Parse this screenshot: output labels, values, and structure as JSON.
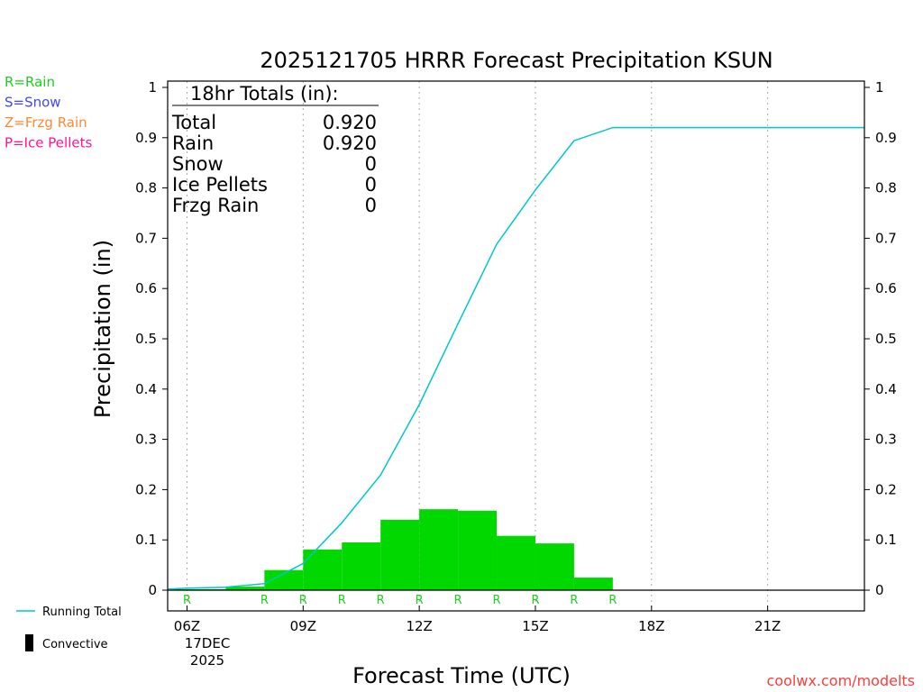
{
  "title": "2025121705 HRRR Forecast Precipitation KSUN",
  "xlabel": "Forecast Time (UTC)",
  "ylabel": "Precipitation (in)",
  "credit": "coolwx.com/modelts",
  "colors": {
    "rain": "#00d800",
    "running_total": "#00c8c8",
    "rain_text": "#22cc22",
    "snow_text": "#4444ff",
    "frzg_text": "#ff8833",
    "ice_text": "#ff1493",
    "credit": "#ff3b3b"
  },
  "ptype_legend": [
    {
      "label": "R=Rain",
      "color": "#22cc22"
    },
    {
      "label": "S=Snow",
      "color": "#4444ff"
    },
    {
      "label": "Z=Frzg Rain",
      "color": "#ff8833"
    },
    {
      "label": "P=Ice Pellets",
      "color": "#ff1493"
    }
  ],
  "series_legend": {
    "running_total": "Running Total",
    "convective": "Convective"
  },
  "totals": {
    "header": "18hr Totals (in):",
    "rows": [
      {
        "label": "Total",
        "value": "0.920"
      },
      {
        "label": "Rain",
        "value": "0.920"
      },
      {
        "label": "Snow",
        "value": "0"
      },
      {
        "label": "Ice Pellets",
        "value": "0"
      },
      {
        "label": "Frzg Rain",
        "value": "0"
      }
    ]
  },
  "x_ticks": [
    {
      "hour": 6,
      "label": "06Z"
    },
    {
      "hour": 9,
      "label": "09Z"
    },
    {
      "hour": 12,
      "label": "12Z"
    },
    {
      "hour": 15,
      "label": "15Z"
    },
    {
      "hour": 18,
      "label": "18Z"
    },
    {
      "hour": 21,
      "label": "21Z"
    }
  ],
  "date_label": [
    "17DEC",
    "2025"
  ],
  "chart_data": {
    "type": "bar",
    "title": "2025121705 HRRR Forecast Precipitation KSUN",
    "xlabel": "Forecast Time (UTC)",
    "ylabel": "Precipitation (in)",
    "xlim": [
      5.5,
      23.5
    ],
    "ylim": [
      0,
      1
    ],
    "y_ticks": [
      0,
      0.1,
      0.2,
      0.3,
      0.4,
      0.5,
      0.6,
      0.7,
      0.8,
      0.9,
      1
    ],
    "grid": "vertical dotted at 3-hourly ticks",
    "bars": {
      "name": "Rain",
      "hours": [
        6,
        7,
        8,
        9,
        10,
        11,
        12,
        13,
        14,
        15,
        16,
        17
      ],
      "values": [
        0.002,
        0.002,
        0.007,
        0.04,
        0.081,
        0.095,
        0.14,
        0.161,
        0.158,
        0.108,
        0.093,
        0.025
      ]
    },
    "running_total": {
      "name": "Running Total",
      "hours": [
        5.5,
        6,
        7,
        8,
        9,
        10,
        11,
        12,
        13,
        14,
        15,
        16,
        17,
        18,
        19,
        20,
        21,
        22,
        23,
        23.5
      ],
      "values": [
        0.002,
        0.004,
        0.006,
        0.013,
        0.053,
        0.134,
        0.229,
        0.369,
        0.53,
        0.688,
        0.796,
        0.894,
        0.92,
        0.92,
        0.92,
        0.92,
        0.92,
        0.92,
        0.92,
        0.92
      ]
    },
    "ptype_markers": {
      "hours": [
        6,
        8,
        9,
        10,
        11,
        12,
        13,
        14,
        15,
        16,
        17
      ],
      "label": "R"
    }
  }
}
